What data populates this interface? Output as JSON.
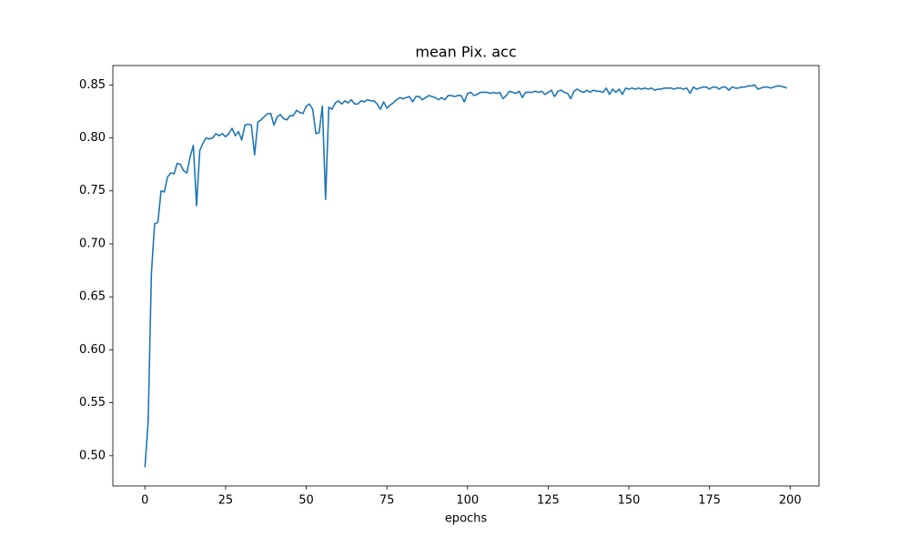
{
  "chart_data": {
    "type": "line",
    "title": "mean Pix. acc",
    "xlabel": "epochs",
    "color": "#1f77b4",
    "x": [
      0,
      1,
      2,
      3,
      4,
      5,
      6,
      7,
      8,
      9,
      10,
      11,
      12,
      13,
      14,
      15,
      16,
      17,
      18,
      19,
      20,
      21,
      22,
      23,
      24,
      25,
      26,
      27,
      28,
      29,
      30,
      31,
      32,
      33,
      34,
      35,
      36,
      37,
      38,
      39,
      40,
      41,
      42,
      43,
      44,
      45,
      46,
      47,
      48,
      49,
      50,
      51,
      52,
      53,
      54,
      55,
      56,
      57,
      58,
      59,
      60,
      61,
      62,
      63,
      64,
      65,
      66,
      67,
      68,
      69,
      70,
      71,
      72,
      73,
      74,
      75,
      76,
      77,
      78,
      79,
      80,
      81,
      82,
      83,
      84,
      85,
      86,
      87,
      88,
      89,
      90,
      91,
      92,
      93,
      94,
      95,
      96,
      97,
      98,
      99,
      100,
      101,
      102,
      103,
      104,
      105,
      106,
      107,
      108,
      109,
      110,
      111,
      112,
      113,
      114,
      115,
      116,
      117,
      118,
      119,
      120,
      121,
      122,
      123,
      124,
      125,
      126,
      127,
      128,
      129,
      130,
      131,
      132,
      133,
      134,
      135,
      136,
      137,
      138,
      139,
      140,
      141,
      142,
      143,
      144,
      145,
      146,
      147,
      148,
      149,
      150,
      151,
      152,
      153,
      154,
      155,
      156,
      157,
      158,
      159,
      160,
      161,
      162,
      163,
      164,
      165,
      166,
      167,
      168,
      169,
      170,
      171,
      172,
      173,
      174,
      175,
      176,
      177,
      178,
      179,
      180,
      181,
      182,
      183,
      184,
      185,
      186,
      187,
      188,
      189,
      190,
      191,
      192,
      193,
      194,
      195,
      196,
      197,
      198,
      199
    ],
    "values": [
      0.489,
      0.532,
      0.672,
      0.719,
      0.72,
      0.75,
      0.749,
      0.763,
      0.767,
      0.766,
      0.776,
      0.775,
      0.769,
      0.767,
      0.782,
      0.793,
      0.736,
      0.788,
      0.795,
      0.8,
      0.799,
      0.8,
      0.804,
      0.802,
      0.804,
      0.801,
      0.804,
      0.809,
      0.802,
      0.806,
      0.798,
      0.812,
      0.813,
      0.812,
      0.784,
      0.815,
      0.817,
      0.82,
      0.823,
      0.823,
      0.812,
      0.82,
      0.822,
      0.818,
      0.817,
      0.821,
      0.821,
      0.826,
      0.824,
      0.823,
      0.83,
      0.832,
      0.827,
      0.804,
      0.805,
      0.83,
      0.742,
      0.829,
      0.827,
      0.833,
      0.835,
      0.832,
      0.835,
      0.833,
      0.836,
      0.832,
      0.832,
      0.835,
      0.834,
      0.836,
      0.835,
      0.835,
      0.832,
      0.827,
      0.834,
      0.828,
      0.831,
      0.833,
      0.836,
      0.838,
      0.837,
      0.838,
      0.839,
      0.834,
      0.839,
      0.839,
      0.836,
      0.838,
      0.84,
      0.839,
      0.838,
      0.836,
      0.838,
      0.836,
      0.84,
      0.84,
      0.839,
      0.84,
      0.84,
      0.834,
      0.842,
      0.843,
      0.84,
      0.841,
      0.843,
      0.843,
      0.843,
      0.842,
      0.843,
      0.842,
      0.843,
      0.837,
      0.84,
      0.844,
      0.843,
      0.842,
      0.844,
      0.838,
      0.843,
      0.843,
      0.843,
      0.844,
      0.843,
      0.844,
      0.841,
      0.843,
      0.845,
      0.839,
      0.844,
      0.845,
      0.843,
      0.842,
      0.837,
      0.844,
      0.846,
      0.844,
      0.843,
      0.845,
      0.843,
      0.845,
      0.844,
      0.844,
      0.843,
      0.847,
      0.841,
      0.846,
      0.843,
      0.846,
      0.841,
      0.847,
      0.846,
      0.847,
      0.846,
      0.847,
      0.846,
      0.847,
      0.846,
      0.847,
      0.845,
      0.846,
      0.846,
      0.847,
      0.847,
      0.847,
      0.846,
      0.847,
      0.847,
      0.846,
      0.847,
      0.842,
      0.848,
      0.846,
      0.847,
      0.848,
      0.848,
      0.846,
      0.848,
      0.848,
      0.846,
      0.848,
      0.848,
      0.845,
      0.848,
      0.847,
      0.847,
      0.848,
      0.848,
      0.849,
      0.849,
      0.85,
      0.846,
      0.847,
      0.848,
      0.848,
      0.847,
      0.848,
      0.849,
      0.849,
      0.848,
      0.847
    ],
    "xlim": [
      -9.95,
      208.95
    ],
    "ylim": [
      0.4715,
      0.8683
    ],
    "xticks": [
      0,
      25,
      50,
      75,
      100,
      125,
      150,
      175,
      200
    ],
    "yticks": [
      {
        "value": 0.5,
        "label": "0.50"
      },
      0.55,
      {
        "value": 0.6,
        "label": "0.60"
      },
      0.65,
      {
        "value": 0.7,
        "label": "0.70"
      },
      0.75,
      {
        "value": 0.8,
        "label": "0.80"
      },
      0.85
    ]
  }
}
